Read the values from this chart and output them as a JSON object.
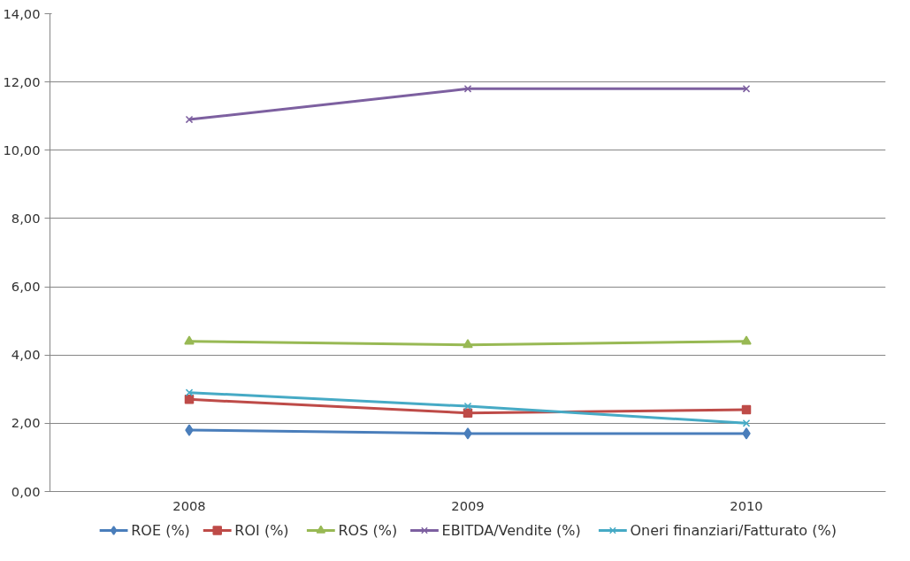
{
  "chart_data": {
    "type": "line",
    "categories": [
      "2008",
      "2009",
      "2010"
    ],
    "series": [
      {
        "name": "ROE (%)",
        "color": "#4a7ebb",
        "marker": "diamond",
        "values": [
          1.8,
          1.7,
          1.7
        ]
      },
      {
        "name": "ROI (%)",
        "color": "#be4b48",
        "marker": "square",
        "values": [
          2.7,
          2.3,
          2.4
        ]
      },
      {
        "name": "ROS (%)",
        "color": "#98b954",
        "marker": "triangle",
        "values": [
          4.4,
          4.3,
          4.4
        ]
      },
      {
        "name": "EBITDA/Vendite (%)",
        "color": "#7d60a0",
        "marker": "cross",
        "values": [
          10.9,
          11.8,
          11.8
        ]
      },
      {
        "name": "Oneri finanziari/Fatturato (%)",
        "color": "#46aac5",
        "marker": "cross",
        "values": [
          2.9,
          2.5,
          2.0
        ]
      }
    ],
    "ylim": [
      0,
      14
    ],
    "yticks": [
      {
        "value": 0,
        "label": "0,00"
      },
      {
        "value": 2,
        "label": "2,00"
      },
      {
        "value": 4,
        "label": "4,00"
      },
      {
        "value": 6,
        "label": "6,00"
      },
      {
        "value": 8,
        "label": "8,00"
      },
      {
        "value": 10,
        "label": "10,00"
      },
      {
        "value": 12,
        "label": "12,00"
      },
      {
        "value": 14,
        "label": "14,00"
      }
    ],
    "grid": "y",
    "legend": "bottom",
    "line_style": "solid"
  }
}
